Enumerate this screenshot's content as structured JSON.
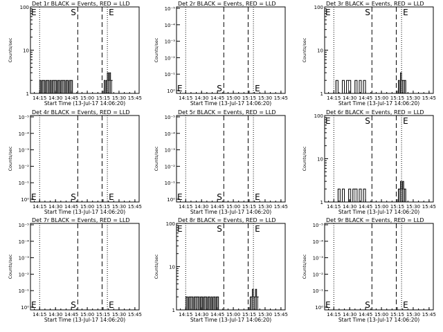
{
  "figure": {
    "colors": {
      "events": "#000000",
      "lld": "#ff0000",
      "background": "#ffffff"
    },
    "xtick_labels": [
      "14:15",
      "14:30",
      "14:45",
      "15:00",
      "15:15",
      "15:30",
      "15:45"
    ],
    "xlabel": "Start Time (13-Jul-17 14:06:20)",
    "ylabel": "Counts/sec",
    "marker_s": "S",
    "marker_e": "E"
  },
  "chart_data": [
    {
      "type": "line",
      "title": "Det 1r BLACK = Events, RED = LLD",
      "xlabel": "Start Time (13-Jul-17 14:06:20)",
      "ylabel": "Counts/sec",
      "y_scale": "log",
      "ytick_labels": [
        "1",
        "10",
        "100"
      ],
      "ylim": [
        1,
        100
      ],
      "xlim": [
        "14:06:20",
        "15:49"
      ],
      "vlines": {
        "dotted": [
          "14:15",
          "15:19"
        ],
        "dashed": [
          "14:51",
          "15:14"
        ]
      },
      "markers": {
        "S": "14:51",
        "E": "15:19",
        "S_position": "top",
        "E_position": "top"
      },
      "series": [
        {
          "color": "#000000",
          "segments": [
            {
              "x": [
                "14:15",
                "14:16",
                "14:17",
                "14:18",
                "14:19",
                "14:20",
                "14:21",
                "14:22",
                "14:23",
                "14:24",
                "14:25",
                "14:26",
                "14:27",
                "14:28",
                "14:29",
                "14:30",
                "14:31",
                "14:32",
                "14:33",
                "14:34",
                "14:35",
                "14:36",
                "14:37",
                "14:38",
                "14:39",
                "14:40",
                "14:41",
                "14:42",
                "14:43",
                "14:44",
                "14:45",
                "14:46"
              ],
              "y": [
                2,
                1,
                2,
                2,
                2,
                1,
                2,
                2,
                2,
                1,
                2,
                1,
                2,
                2,
                2,
                2,
                1,
                2,
                2,
                1,
                2,
                2,
                2,
                2,
                1,
                2,
                2,
                1,
                2,
                2,
                2,
                1
              ]
            },
            {
              "x": [
                "15:15",
                "15:16",
                "15:17",
                "15:18",
                "15:19",
                "15:20",
                "15:21",
                "15:22",
                "15:23"
              ],
              "y": [
                1,
                2,
                1,
                2,
                3,
                2,
                3,
                2,
                2
              ]
            }
          ]
        }
      ]
    },
    {
      "type": "line",
      "title": "Det 2r BLACK = Events, RED = LLD",
      "xlabel": "Start Time (13-Jul-17 14:06:20)",
      "ylabel": "Counts/sec",
      "y_scale": "log",
      "ytick_labels": [
        "10⁰",
        "10⁻¹",
        "10⁻²",
        "10⁻³",
        "10⁻⁴",
        "10⁻⁵"
      ],
      "xlim": [
        "14:06:20",
        "15:49"
      ],
      "vlines": {
        "dotted": [
          "14:15",
          "15:19"
        ],
        "dashed": [
          "14:51",
          "15:14"
        ]
      },
      "markers": {
        "S": "14:51",
        "E": "15:19",
        "S_position": "bottom",
        "E_position": "bottom"
      },
      "series": []
    },
    {
      "type": "line",
      "title": "Det 3r BLACK = Events, RED = LLD",
      "xlabel": "Start Time (13-Jul-17 14:06:20)",
      "ylabel": "Counts/sec",
      "y_scale": "log",
      "ytick_labels": [
        "1",
        "10",
        "100"
      ],
      "ylim": [
        1,
        100
      ],
      "xlim": [
        "14:06:20",
        "15:49"
      ],
      "vlines": {
        "dotted": [
          "14:15",
          "15:19"
        ],
        "dashed": [
          "14:51",
          "15:14"
        ]
      },
      "markers": {
        "S": "14:51",
        "E": "15:19",
        "S_position": "top",
        "E_position": "top"
      },
      "series": [
        {
          "color": "#000000",
          "segments": [
            {
              "x": [
                "14:15",
                "14:17",
                "14:19",
                "14:21",
                "14:23",
                "14:25",
                "14:27",
                "14:29",
                "14:31",
                "14:33",
                "14:35",
                "14:37",
                "14:39",
                "14:41",
                "14:43",
                "14:45"
              ],
              "y": [
                1,
                2,
                1,
                1,
                2,
                1,
                2,
                2,
                1,
                1,
                2,
                1,
                2,
                1,
                2,
                1
              ]
            },
            {
              "x": [
                "15:15",
                "15:16",
                "15:17",
                "15:18",
                "15:19",
                "15:20",
                "15:21",
                "15:22",
                "15:23"
              ],
              "y": [
                1,
                2,
                1,
                3,
                2,
                2,
                2,
                2,
                1
              ]
            }
          ]
        }
      ]
    },
    {
      "type": "line",
      "title": "Det 4r BLACK = Events, RED = LLD",
      "xlabel": "Start Time (13-Jul-17 14:06:20)",
      "ylabel": "Counts/sec",
      "y_scale": "log",
      "ytick_labels": [
        "10⁰",
        "10⁻¹",
        "10⁻²",
        "10⁻³",
        "10⁻⁴",
        "10⁻⁵"
      ],
      "xlim": [
        "14:06:20",
        "15:49"
      ],
      "vlines": {
        "dotted": [
          "14:15",
          "15:19"
        ],
        "dashed": [
          "14:51",
          "15:14"
        ]
      },
      "markers": {
        "S": "14:51",
        "E": "15:19",
        "S_position": "bottom",
        "E_position": "bottom"
      },
      "series": []
    },
    {
      "type": "line",
      "title": "Det 5r BLACK = Events, RED = LLD",
      "xlabel": "Start Time (13-Jul-17 14:06:20)",
      "ylabel": "Counts/sec",
      "y_scale": "log",
      "ytick_labels": [
        "10⁰",
        "10⁻¹",
        "10⁻²",
        "10⁻³",
        "10⁻⁴",
        "10⁻⁵"
      ],
      "xlim": [
        "14:06:20",
        "15:49"
      ],
      "vlines": {
        "dotted": [
          "14:15",
          "15:19"
        ],
        "dashed": [
          "14:51",
          "15:14"
        ]
      },
      "markers": {
        "S": "14:51",
        "E": "15:19",
        "S_position": "bottom",
        "E_position": "bottom"
      },
      "series": []
    },
    {
      "type": "line",
      "title": "Det 6r BLACK = Events, RED = LLD",
      "xlabel": "Start Time (13-Jul-17 14:06:20)",
      "ylabel": "Counts/sec",
      "y_scale": "log",
      "ytick_labels": [
        "1",
        "10",
        "100"
      ],
      "ylim": [
        1,
        100
      ],
      "xlim": [
        "14:06:20",
        "15:49"
      ],
      "vlines": {
        "dotted": [
          "14:15",
          "15:19"
        ],
        "dashed": [
          "14:51",
          "15:14"
        ]
      },
      "markers": {
        "S": "14:51",
        "E": "15:19",
        "S_position": "top",
        "E_position": "top"
      },
      "series": [
        {
          "color": "#000000",
          "segments": [
            {
              "x": [
                "14:17",
                "14:19",
                "14:21",
                "14:23",
                "14:25",
                "14:27",
                "14:29",
                "14:31",
                "14:33",
                "14:35",
                "14:37",
                "14:39",
                "14:41",
                "14:43",
                "14:45",
                "14:47"
              ],
              "y": [
                1,
                2,
                1,
                2,
                1,
                1,
                2,
                1,
                2,
                2,
                1,
                2,
                1,
                2,
                1,
                1
              ]
            },
            {
              "x": [
                "15:15",
                "15:16",
                "15:17",
                "15:18",
                "15:19",
                "15:20",
                "15:21",
                "15:22",
                "15:23"
              ],
              "y": [
                1,
                2,
                2,
                3,
                2,
                3,
                2,
                2,
                1
              ]
            }
          ]
        }
      ]
    },
    {
      "type": "line",
      "title": "Det 7r BLACK = Events, RED = LLD",
      "xlabel": "Start Time (13-Jul-17 14:06:20)",
      "ylabel": "Counts/sec",
      "y_scale": "log",
      "ytick_labels": [
        "10⁰",
        "10⁻¹",
        "10⁻²",
        "10⁻³",
        "10⁻⁴",
        "10⁻⁵"
      ],
      "xlim": [
        "14:06:20",
        "15:49"
      ],
      "vlines": {
        "dotted": [
          "14:15",
          "15:19"
        ],
        "dashed": [
          "14:51",
          "15:14"
        ]
      },
      "markers": {
        "S": "14:51",
        "E": "15:19",
        "S_position": "bottom",
        "E_position": "bottom"
      },
      "series": []
    },
    {
      "type": "line",
      "title": "Det 8r BLACK = Events, RED = LLD",
      "xlabel": "Start Time (13-Jul-17 14:06:20)",
      "ylabel": "Counts/sec",
      "y_scale": "log",
      "ytick_labels": [
        "1",
        "10",
        "100"
      ],
      "ylim": [
        1,
        100
      ],
      "xlim": [
        "14:06:20",
        "15:49"
      ],
      "vlines": {
        "dotted": [
          "14:15",
          "15:19"
        ],
        "dashed": [
          "14:51",
          "15:14"
        ]
      },
      "markers": {
        "S": "14:51",
        "E": "15:19",
        "S_position": "top",
        "E_position": "top"
      },
      "series": [
        {
          "color": "#000000",
          "segments": [
            {
              "x": [
                "14:15",
                "14:16",
                "14:17",
                "14:18",
                "14:19",
                "14:20",
                "14:21",
                "14:22",
                "14:23",
                "14:24",
                "14:25",
                "14:26",
                "14:27",
                "14:28",
                "14:29",
                "14:30",
                "14:31",
                "14:32",
                "14:33",
                "14:34",
                "14:35",
                "14:36",
                "14:37",
                "14:38",
                "14:39",
                "14:40",
                "14:41",
                "14:42",
                "14:43",
                "14:44",
                "14:45",
                "14:46"
              ],
              "y": [
                2,
                2,
                1,
                2,
                2,
                2,
                2,
                1,
                2,
                2,
                2,
                2,
                2,
                1,
                2,
                2,
                1,
                2,
                2,
                2,
                1,
                2,
                2,
                1,
                2,
                1,
                2,
                2,
                1,
                2,
                2,
                1
              ]
            },
            {
              "x": [
                "15:15",
                "15:16",
                "15:17",
                "15:18",
                "15:19",
                "15:20",
                "15:21",
                "15:22",
                "15:23"
              ],
              "y": [
                1,
                2,
                2,
                3,
                2,
                2,
                3,
                2,
                2
              ]
            }
          ]
        }
      ]
    },
    {
      "type": "line",
      "title": "Det 9r BLACK = Events, RED = LLD",
      "xlabel": "Start Time (13-Jul-17 14:06:20)",
      "ylabel": "Counts/sec",
      "y_scale": "log",
      "ytick_labels": [
        "10⁰",
        "10⁻¹",
        "10⁻²",
        "10⁻³",
        "10⁻⁴",
        "10⁻⁵"
      ],
      "xlim": [
        "14:06:20",
        "15:49"
      ],
      "vlines": {
        "dotted": [
          "14:15",
          "15:19"
        ],
        "dashed": [
          "14:51",
          "15:14"
        ]
      },
      "markers": {
        "S": "14:51",
        "E": "15:19",
        "S_position": "bottom",
        "E_position": "bottom"
      },
      "series": []
    }
  ]
}
